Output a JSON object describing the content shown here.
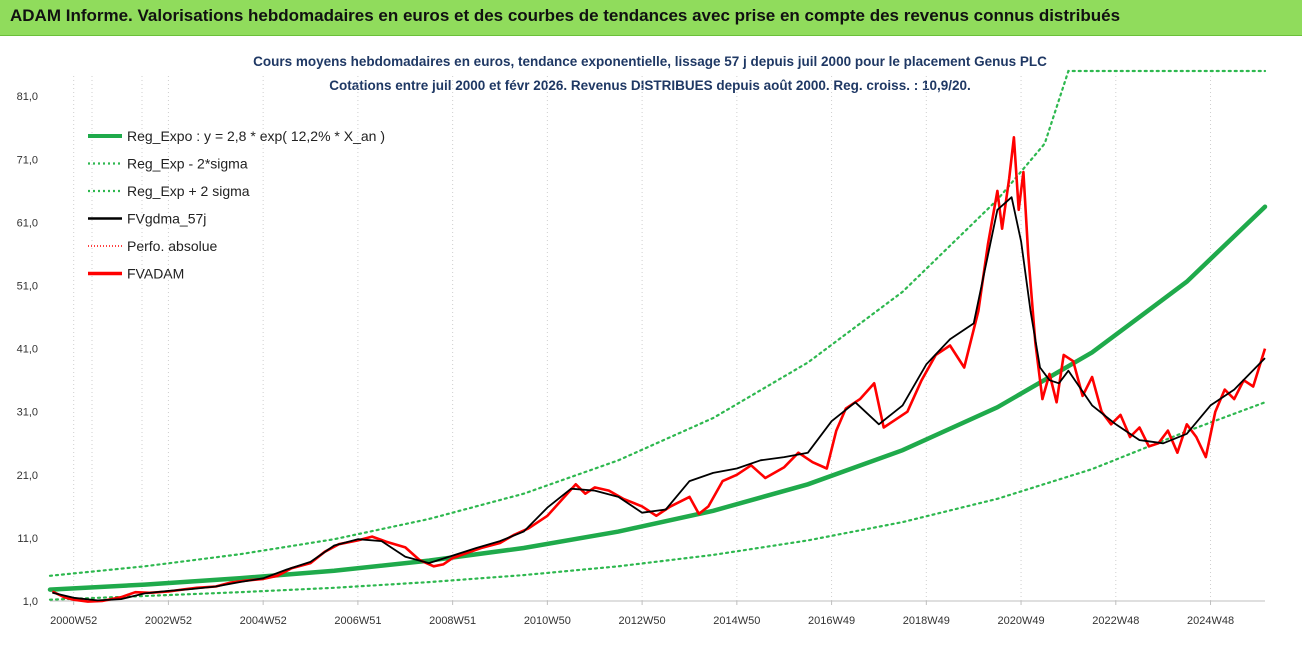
{
  "banner": {
    "title": "ADAM Informe. Valorisations hebdomadaires en euros et des courbes de tendances avec prise en compte des revenus connus distribués"
  },
  "chart_data": {
    "type": "line",
    "title_line1": "Cours moyens hebdomadaires en euros, tendance exponentielle, lissage 57 j depuis juil 2000 pour le placement Genus PLC",
    "title_line2": "Cotations entre juil 2000 et févr 2026.  Revenus DISTRIBUES depuis août 2000. Reg. croiss. : 10,9/20.",
    "ylim": [
      1,
      85
    ],
    "y_ticks": [
      "1,0",
      "11,0",
      "21,0",
      "31,0",
      "41,0",
      "51,0",
      "61,0",
      "71,0",
      "81,0"
    ],
    "y_tick_values": [
      1,
      11,
      21,
      31,
      41,
      51,
      61,
      71,
      81
    ],
    "xlim": [
      2000.5,
      2026.15
    ],
    "x_ticks": [
      "2000W52",
      "2002W52",
      "2004W52",
      "2006W51",
      "2008W51",
      "2010W50",
      "2012W50",
      "2014W50",
      "2016W49",
      "2018W49",
      "2020W49",
      "2022W48",
      "2024W48"
    ],
    "x_tick_years": [
      2001.0,
      2003.0,
      2005.0,
      2007.0,
      2009.0,
      2011.0,
      2013.0,
      2015.0,
      2017.0,
      2019.0,
      2021.0,
      2023.0,
      2025.0
    ],
    "legend_position": "top-left",
    "grid": "vertical",
    "colors": {
      "trend": "#1faa4b",
      "bands": "#2eb84f",
      "smooth": "#000000",
      "perf": "#ff0000",
      "fvadam": "#ff0000"
    },
    "series": [
      {
        "name": "Reg_Expo : y = 2,8 * exp( 12,2% *  X_an )",
        "kind": "trend",
        "x": [
          2000.5,
          2002.5,
          2004.5,
          2006.5,
          2008.5,
          2010.5,
          2012.5,
          2014.5,
          2016.5,
          2018.5,
          2020.5,
          2022.5,
          2024.5,
          2026.15
        ],
        "values": [
          2.8,
          3.6,
          4.6,
          5.8,
          7.4,
          9.4,
          12.0,
          15.3,
          19.5,
          24.9,
          31.7,
          40.4,
          51.6,
          63.5
        ]
      },
      {
        "name": "Reg_Exp - 2*sigma",
        "kind": "band",
        "x": [
          2000.5,
          2002.5,
          2004.5,
          2006.5,
          2008.5,
          2010.5,
          2012.5,
          2014.5,
          2016.5,
          2018.5,
          2020.5,
          2022.5,
          2024.5,
          2026.15
        ],
        "values": [
          1.2,
          1.8,
          2.4,
          3.1,
          4.0,
          5.1,
          6.5,
          8.3,
          10.6,
          13.5,
          17.2,
          21.9,
          27.9,
          32.5
        ]
      },
      {
        "name": "Reg_Exp + 2 sigma",
        "kind": "band",
        "x": [
          2000.5,
          2002.5,
          2004.5,
          2006.5,
          2008.5,
          2010.5,
          2012.5,
          2014.5,
          2016.5,
          2018.5,
          2020.5,
          2021.5,
          2022.0,
          2024.0,
          2026.15
        ],
        "values": [
          5.0,
          6.5,
          8.4,
          10.8,
          14.0,
          18.0,
          23.3,
          30.0,
          38.8,
          50.0,
          64.6,
          73.5,
          85.0,
          85.0,
          85.0
        ]
      },
      {
        "name": "FVgdma_57j",
        "kind": "smooth",
        "x": [
          2000.55,
          2001.0,
          2001.5,
          2002.0,
          2002.5,
          2003.0,
          2003.5,
          2004.0,
          2004.5,
          2005.0,
          2005.5,
          2006.0,
          2006.5,
          2007.0,
          2007.5,
          2008.0,
          2008.5,
          2009.0,
          2009.5,
          2010.0,
          2010.5,
          2011.0,
          2011.5,
          2012.0,
          2012.5,
          2013.0,
          2013.5,
          2014.0,
          2014.5,
          2015.0,
          2015.5,
          2016.0,
          2016.5,
          2017.0,
          2017.5,
          2018.0,
          2018.5,
          2019.0,
          2019.5,
          2020.0,
          2020.5,
          2020.8,
          2021.0,
          2021.2,
          2021.4,
          2021.6,
          2021.8,
          2022.0,
          2022.5,
          2023.0,
          2023.5,
          2024.0,
          2024.5,
          2025.0,
          2025.5,
          2026.15
        ],
        "values": [
          2.3,
          1.5,
          1.1,
          1.3,
          2.2,
          2.6,
          2.9,
          3.3,
          4.0,
          4.6,
          6.0,
          7.2,
          9.8,
          10.8,
          10.5,
          8.0,
          7.0,
          8.2,
          9.4,
          10.5,
          12.0,
          15.8,
          18.8,
          18.5,
          17.5,
          15.0,
          15.5,
          20.0,
          21.3,
          22.0,
          23.3,
          23.8,
          24.5,
          29.5,
          32.5,
          29.0,
          32.0,
          38.5,
          42.5,
          45.0,
          63.0,
          65.0,
          58.0,
          47.0,
          38.0,
          36.0,
          35.5,
          37.5,
          32.0,
          29.0,
          26.5,
          26.0,
          27.5,
          32.0,
          34.5,
          39.5
        ]
      },
      {
        "name": "Perfo. absolue",
        "kind": "perf",
        "x": [],
        "values": []
      },
      {
        "name": "FVADAM",
        "kind": "fvadam",
        "x": [
          2000.55,
          2000.8,
          2001.0,
          2001.3,
          2001.6,
          2002.0,
          2002.3,
          2002.6,
          2003.0,
          2003.3,
          2003.6,
          2004.0,
          2004.3,
          2004.6,
          2005.0,
          2005.3,
          2005.6,
          2006.0,
          2006.3,
          2006.6,
          2007.0,
          2007.3,
          2007.6,
          2008.0,
          2008.3,
          2008.6,
          2008.8,
          2009.0,
          2009.3,
          2009.6,
          2010.0,
          2010.3,
          2010.6,
          2011.0,
          2011.3,
          2011.6,
          2011.8,
          2012.0,
          2012.3,
          2012.6,
          2013.0,
          2013.3,
          2013.6,
          2014.0,
          2014.2,
          2014.4,
          2014.7,
          2015.0,
          2015.3,
          2015.6,
          2016.0,
          2016.3,
          2016.6,
          2016.9,
          2017.1,
          2017.3,
          2017.6,
          2017.9,
          2018.1,
          2018.3,
          2018.6,
          2018.9,
          2019.2,
          2019.5,
          2019.8,
          2020.1,
          2020.3,
          2020.5,
          2020.6,
          2020.75,
          2020.85,
          2020.95,
          2021.05,
          2021.15,
          2021.3,
          2021.45,
          2021.6,
          2021.75,
          2021.9,
          2022.1,
          2022.3,
          2022.5,
          2022.7,
          2022.9,
          2023.1,
          2023.3,
          2023.5,
          2023.7,
          2023.9,
          2024.1,
          2024.3,
          2024.5,
          2024.7,
          2024.9,
          2025.1,
          2025.3,
          2025.5,
          2025.7,
          2025.9,
          2026.15
        ],
        "values": [
          2.5,
          1.6,
          1.2,
          0.9,
          1.0,
          1.6,
          2.4,
          2.3,
          2.5,
          2.8,
          3.1,
          3.3,
          3.9,
          4.2,
          4.5,
          5.0,
          6.2,
          7.0,
          8.8,
          10.0,
          10.6,
          11.2,
          10.4,
          9.5,
          7.5,
          6.5,
          6.8,
          7.8,
          8.6,
          9.4,
          10.2,
          11.5,
          12.5,
          14.5,
          17.0,
          19.5,
          18.0,
          19.0,
          18.5,
          17.2,
          16.0,
          14.5,
          16.0,
          17.5,
          14.8,
          16.0,
          20.0,
          21.0,
          22.5,
          20.5,
          22.2,
          24.5,
          23.0,
          22.0,
          28.0,
          31.5,
          33.0,
          35.5,
          28.5,
          29.5,
          31.0,
          36.0,
          40.0,
          41.5,
          38.0,
          47.0,
          57.5,
          66.0,
          60.0,
          68.0,
          74.5,
          63.0,
          69.0,
          56.0,
          42.0,
          33.0,
          37.0,
          32.5,
          40.0,
          39.0,
          33.5,
          36.5,
          31.0,
          29.0,
          30.5,
          27.0,
          28.5,
          25.5,
          26.0,
          28.0,
          24.5,
          29.0,
          27.0,
          23.8,
          31.0,
          34.5,
          33.0,
          36.0,
          35.0,
          41.0
        ]
      }
    ]
  }
}
